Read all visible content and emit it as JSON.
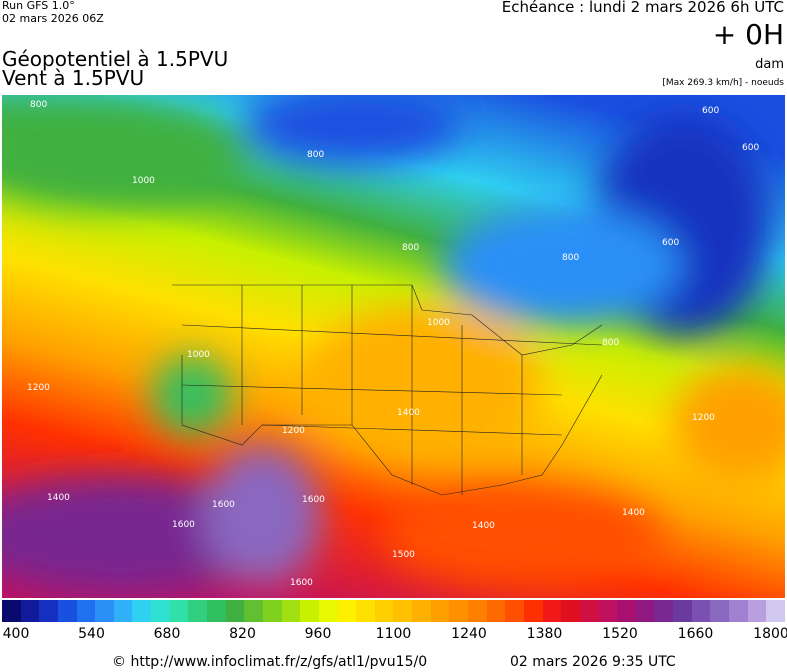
{
  "header": {
    "run": "Run GFS 1.0°",
    "run_date": "02 mars 2026 06Z",
    "valid": "Echéance : lundi 2 mars 2026 6h UTC",
    "lead": "+ 0H",
    "title_1": "Géopotentiel à 1.5PVU",
    "title_2": "Vent à 1.5PVU",
    "unit": "dam",
    "max_note": "[Max 269.3 km/h] - noeuds"
  },
  "map": {
    "contour_labels": [
      "800",
      "800",
      "1000",
      "600",
      "600",
      "600",
      "800",
      "800",
      "800",
      "1000",
      "1200",
      "1000",
      "1200",
      "1400",
      "1600",
      "1600",
      "1600",
      "1400",
      "1500",
      "1400",
      "1600",
      "1200",
      "1400"
    ]
  },
  "colorbar": {
    "ticks": [
      "400",
      "540",
      "680",
      "820",
      "960",
      "1100",
      "1240",
      "1380",
      "1520",
      "1660",
      "1800"
    ],
    "colors": [
      "#0a0a6e",
      "#101a9a",
      "#1530c0",
      "#1a50e0",
      "#2070f0",
      "#2a90f8",
      "#30b0f8",
      "#30d0f0",
      "#30e0d0",
      "#30e0a8",
      "#30d080",
      "#30c060",
      "#40b040",
      "#60c030",
      "#80d020",
      "#a0e010",
      "#c8f000",
      "#e8f800",
      "#fff000",
      "#ffe000",
      "#ffd000",
      "#ffc000",
      "#ffb000",
      "#ffa000",
      "#ff9000",
      "#ff8000",
      "#ff6a00",
      "#ff5000",
      "#ff3000",
      "#f01818",
      "#e01020",
      "#d01040",
      "#c01060",
      "#a81070",
      "#901880",
      "#782890",
      "#6a3aa0",
      "#7a50b0",
      "#8a68c0",
      "#a080d0",
      "#b8a0e0",
      "#d0c8ee"
    ]
  },
  "footer": {
    "source": "© http://www.infoclimat.fr/z/gfs/atl1/pvu15/0",
    "time": "02 mars 2026  9:35 UTC"
  }
}
